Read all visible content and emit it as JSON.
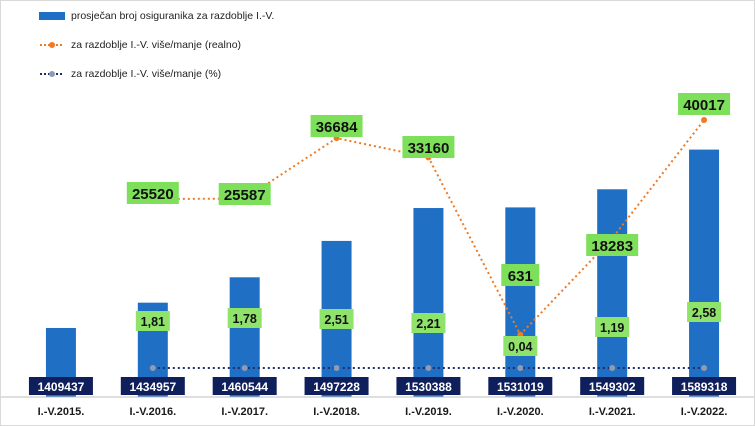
{
  "chart_data": {
    "type": "bar",
    "categories": [
      "I.-V.2015.",
      "I.-V.2016.",
      "I.-V.2017.",
      "I.-V.2018.",
      "I.-V.2019.",
      "I.-V.2020.",
      "I.-V.2021.",
      "I.-V.2022."
    ],
    "series": [
      {
        "name": "prosječan broj osiguranika za razdoblje I.-V.",
        "type": "bar",
        "color": "#1f6fc5",
        "values": [
          1409437,
          1434957,
          1460544,
          1497228,
          1530388,
          1531019,
          1549302,
          1589318
        ],
        "value_labels": [
          "1409437",
          "1434957",
          "1460544",
          "1497228",
          "1530388",
          "1531019",
          "1549302",
          "1589318"
        ]
      },
      {
        "name": "za razdoblje I.-V. više/manje (realno)",
        "type": "line",
        "style": "dotted",
        "color": "#f07a22",
        "values": [
          null,
          25520,
          25587,
          36684,
          33160,
          631,
          18283,
          40017
        ],
        "value_labels": [
          "",
          "25520",
          "25587",
          "36684",
          "33160",
          "631",
          "18283",
          "40017"
        ]
      },
      {
        "name": "za razdoblje I.-V. više/manje (%)",
        "type": "line",
        "style": "dotted",
        "color": "#1f2d6b",
        "values": [
          null,
          1.81,
          1.78,
          2.51,
          2.21,
          0.04,
          1.19,
          2.58
        ],
        "value_labels": [
          "",
          "1,81",
          "1,78",
          "2,51",
          "2,21",
          "0,04",
          "1,19",
          "2,58"
        ]
      }
    ],
    "colors": {
      "bar": "#1f6fc5",
      "bar_label_bg": "#0f1f5c",
      "bar_label_text": "#ffffff",
      "real_label_bg": "#7ee05a",
      "pct_label_bg": "#8fe36a",
      "axis": "#bfbfbf"
    },
    "legend_position": "top-left"
  }
}
